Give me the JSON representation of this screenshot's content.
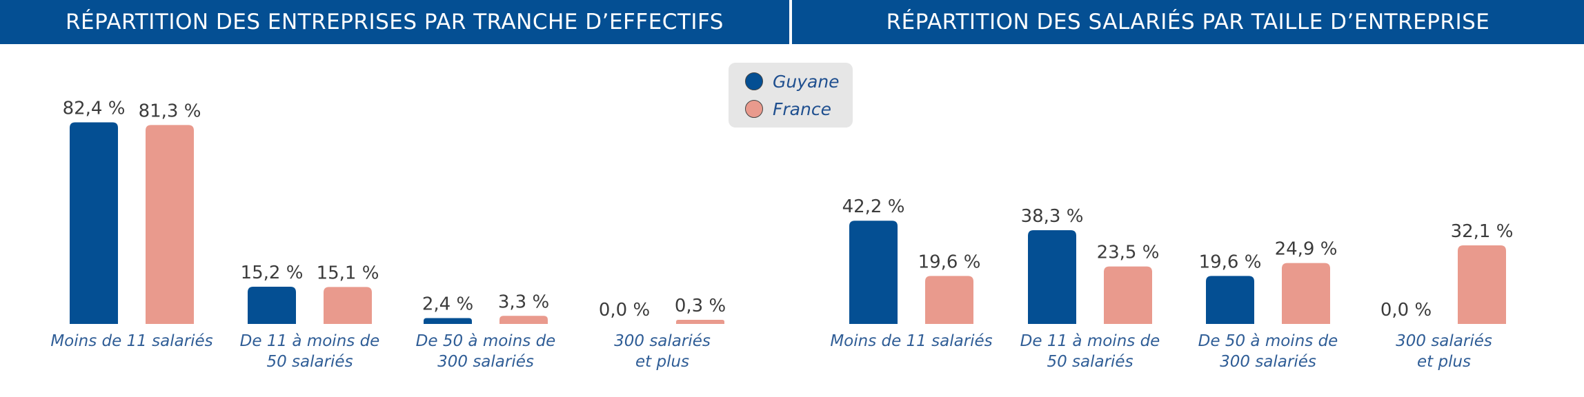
{
  "banners": {
    "left": "RÉPARTITION DES ENTREPRISES PAR TRANCHE D’EFFECTIFS",
    "right": "RÉPARTITION DES SALARIÉS PAR TAILLE D’ENTREPRISE"
  },
  "legend": {
    "items": [
      {
        "label": "Guyane",
        "color": "#044f93"
      },
      {
        "label": "France",
        "color": "#e99a8d"
      }
    ]
  },
  "chart_data": [
    {
      "type": "bar",
      "title": "RÉPARTITION DES ENTREPRISES PAR TRANCHE D’EFFECTIFS",
      "categories": [
        [
          "Moins de 11 salariés"
        ],
        [
          "De 11 à moins de",
          "50 salariés"
        ],
        [
          "De 50 à moins de",
          "300 salariés"
        ],
        [
          "300 salariés",
          "et plus"
        ]
      ],
      "series": [
        {
          "name": "Guyane",
          "color": "#044f93",
          "values": [
            82.4,
            15.2,
            2.4,
            0.0
          ],
          "labels": [
            "82,4 %",
            "15,2 %",
            "2,4 %",
            "0,0 %"
          ]
        },
        {
          "name": "France",
          "color": "#e99a8d",
          "values": [
            81.3,
            15.1,
            3.3,
            0.3
          ],
          "labels": [
            "81,3 %",
            "15,1 %",
            "3,3 %",
            "0,3 %"
          ]
        }
      ],
      "ylim": [
        0,
        100
      ],
      "grid": false,
      "legend": "top-center"
    },
    {
      "type": "bar",
      "title": "RÉPARTITION DES SALARIÉS PAR TAILLE D’ENTREPRISE",
      "categories": [
        [
          "Moins de 11 salariés"
        ],
        [
          "De 11 à moins de",
          "50 salariés"
        ],
        [
          "De 50 à moins de",
          "300 salariés"
        ],
        [
          "300 salariés",
          "et plus"
        ]
      ],
      "series": [
        {
          "name": "Guyane",
          "color": "#044f93",
          "values": [
            42.2,
            38.3,
            19.6,
            0.0
          ],
          "labels": [
            "42,2 %",
            "38,3 %",
            "19,6 %",
            "0,0 %"
          ]
        },
        {
          "name": "France",
          "color": "#e99a8d",
          "values": [
            19.6,
            23.5,
            24.9,
            32.1
          ],
          "labels": [
            "19,6 %",
            "23,5 %",
            "24,9 %",
            "32,1 %"
          ]
        }
      ],
      "ylim": [
        0,
        100
      ],
      "grid": false,
      "legend": "top-center"
    }
  ]
}
